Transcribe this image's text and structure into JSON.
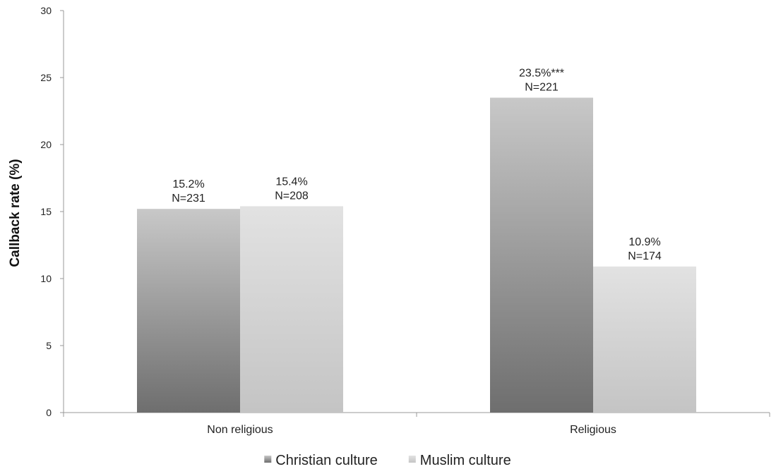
{
  "chart_data": {
    "type": "bar",
    "title": "",
    "xlabel": "",
    "ylabel": "Callback rate (%)",
    "ylim": [
      0,
      30
    ],
    "yticks": [
      0,
      5,
      10,
      15,
      20,
      25,
      30
    ],
    "categories": [
      "Non religious",
      "Religious"
    ],
    "series": [
      {
        "name": "Christian culture",
        "values": [
          15.2,
          23.5
        ],
        "labels": [
          [
            "15.2%",
            "N=231"
          ],
          [
            "23.5%***",
            "N=221"
          ]
        ],
        "color_dark": "#6e6e6e",
        "color_light": "#c8c8c8"
      },
      {
        "name": "Muslim culture",
        "values": [
          15.4,
          10.9
        ],
        "labels": [
          [
            "15.4%",
            "N=208"
          ],
          [
            "10.9%",
            "N=174"
          ]
        ],
        "color_dark": "#c4c4c4",
        "color_light": "#e2e2e2"
      }
    ],
    "grid": false,
    "legend_position": "bottom"
  }
}
